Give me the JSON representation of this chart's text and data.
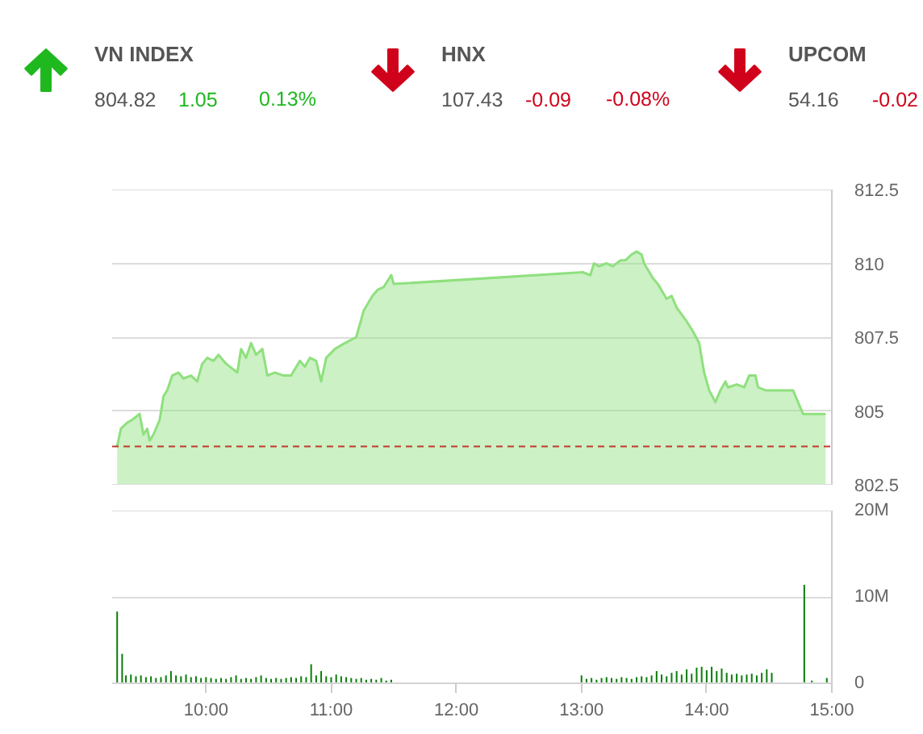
{
  "chart_data": [
    {
      "type": "other",
      "categories": [
        "VN INDEX",
        "HNX",
        "UPCOM"
      ],
      "data_labels": true,
      "series": [
        {
          "values": [
            804.82,
            107.43,
            54.16
          ]
        },
        {
          "colors": [
            "#1fb81f",
            "#d0021b",
            "#d0021b"
          ],
          "values": [
            1.05,
            -0.09,
            -0.02
          ]
        },
        {
          "colors": [
            "#1fb81f",
            "#d0021b",
            "#d0021b"
          ],
          "values": [
            0.13,
            -0.08,
            null
          ],
          "value_labels": [
            "0.13%",
            "-0.08%",
            null
          ]
        }
      ]
    },
    {
      "type": "area",
      "color": "#8fe07e",
      "xlim": [
        9.25,
        15
      ],
      "ylim": [
        802.5,
        812.5
      ],
      "yticks": [
        802.5,
        805,
        807.5,
        810,
        812.5
      ],
      "tick_labels": "y",
      "grid": "y",
      "x": [
        9.29,
        9.32,
        9.37,
        9.41,
        9.47,
        9.5,
        9.53,
        9.55,
        9.58,
        9.63,
        9.66,
        9.69,
        9.73,
        9.78,
        9.82,
        9.88,
        9.93,
        9.97,
        10.01,
        10.06,
        10.1,
        10.16,
        10.25,
        10.28,
        10.32,
        10.36,
        10.4,
        10.45,
        10.49,
        10.55,
        10.62,
        10.68,
        10.75,
        10.79,
        10.83,
        10.88,
        10.92,
        10.96,
        11.03,
        11.11,
        11.2,
        11.26,
        11.33,
        11.37,
        11.42,
        11.48,
        11.5,
        13.01,
        13.07,
        13.1,
        13.14,
        13.2,
        13.25,
        13.31,
        13.35,
        13.4,
        13.44,
        13.48,
        13.5,
        13.57,
        13.61,
        13.68,
        13.72,
        13.76,
        13.83,
        13.89,
        13.94,
        13.98,
        14.02,
        14.07,
        14.11,
        14.15,
        14.17,
        14.24,
        14.3,
        14.34,
        14.39,
        14.41,
        14.47,
        14.69,
        14.77,
        14.95
      ],
      "values": [
        803.8,
        804.4,
        804.6,
        804.7,
        804.9,
        804.2,
        804.4,
        804,
        804.2,
        804.7,
        805.5,
        805.7,
        806.2,
        806.3,
        806.1,
        806.2,
        806,
        806.6,
        806.8,
        806.7,
        806.9,
        806.6,
        806.3,
        807.1,
        806.8,
        807.3,
        806.9,
        807.1,
        806.2,
        806.3,
        806.2,
        806.2,
        806.7,
        806.5,
        806.8,
        806.7,
        806,
        806.8,
        807.1,
        807.3,
        807.5,
        808.4,
        808.9,
        809.1,
        809.2,
        809.6,
        809.3,
        809.7,
        809.6,
        810,
        809.9,
        810,
        809.9,
        810.1,
        810.1,
        810.3,
        810.4,
        810.3,
        810,
        809.5,
        809.3,
        808.8,
        808.9,
        808.5,
        808.1,
        807.7,
        807.3,
        806.3,
        805.7,
        805.3,
        805.7,
        806,
        805.8,
        805.9,
        805.8,
        806.2,
        806.2,
        805.8,
        805.7,
        805.7,
        804.9,
        804.9
      ],
      "ref_lines": [
        {
          "axis": "y",
          "value": 803.8,
          "color": "#c0392b",
          "line_style": "dashed"
        }
      ]
    },
    {
      "type": "bar",
      "color": "#0b7d0b",
      "xlim": [
        9.25,
        15
      ],
      "ylim": [
        0,
        20
      ],
      "xticks": [
        {
          "value": 10,
          "label": "10:00"
        },
        {
          "value": 11,
          "label": "11:00"
        },
        {
          "value": 12,
          "label": "12:00"
        },
        {
          "value": 13,
          "label": "13:00"
        },
        {
          "value": 14,
          "label": "14:00"
        },
        {
          "value": 15,
          "label": "15:00"
        }
      ],
      "yticks": [
        0,
        {
          "value": 10,
          "label": "10M"
        },
        {
          "value": 20,
          "label": "20M"
        }
      ],
      "grid": "y",
      "x": [
        9.29,
        9.33,
        9.36,
        9.4,
        9.44,
        9.48,
        9.52,
        9.56,
        9.6,
        9.64,
        9.68,
        9.72,
        9.76,
        9.8,
        9.84,
        9.88,
        9.92,
        9.96,
        10,
        10.04,
        10.08,
        10.12,
        10.16,
        10.2,
        10.24,
        10.28,
        10.32,
        10.36,
        10.4,
        10.44,
        10.48,
        10.52,
        10.56,
        10.6,
        10.64,
        10.68,
        10.72,
        10.76,
        10.8,
        10.84,
        10.88,
        10.92,
        10.96,
        11,
        11.04,
        11.08,
        11.12,
        11.16,
        11.2,
        11.24,
        11.28,
        11.32,
        11.36,
        11.4,
        11.44,
        11.48,
        13,
        13.04,
        13.08,
        13.12,
        13.16,
        13.2,
        13.24,
        13.28,
        13.32,
        13.36,
        13.4,
        13.44,
        13.48,
        13.52,
        13.56,
        13.6,
        13.64,
        13.68,
        13.72,
        13.76,
        13.8,
        13.84,
        13.88,
        13.92,
        13.96,
        14,
        14.04,
        14.08,
        14.12,
        14.16,
        14.2,
        14.24,
        14.28,
        14.32,
        14.36,
        14.4,
        14.44,
        14.48,
        14.52,
        14.78,
        14.84,
        14.96
      ],
      "values": [
        8.3,
        3.4,
        0.9,
        1.0,
        0.8,
        0.9,
        0.7,
        0.8,
        0.6,
        0.7,
        0.9,
        1.4,
        0.9,
        0.8,
        1.0,
        0.7,
        0.8,
        0.6,
        0.7,
        0.6,
        0.5,
        0.6,
        0.5,
        0.7,
        0.9,
        0.5,
        0.6,
        0.5,
        0.7,
        0.9,
        0.6,
        0.5,
        0.6,
        0.5,
        0.6,
        0.7,
        0.6,
        0.8,
        0.7,
        2.2,
        0.9,
        1.4,
        0.8,
        0.7,
        1.0,
        0.8,
        0.7,
        0.6,
        0.5,
        0.6,
        0.4,
        0.5,
        0.4,
        0.6,
        0.3,
        0.4,
        0.9,
        0.5,
        0.6,
        0.4,
        0.6,
        0.7,
        0.6,
        0.5,
        0.7,
        0.6,
        0.5,
        0.7,
        0.8,
        0.7,
        0.9,
        1.4,
        1.0,
        0.8,
        1.2,
        1.4,
        1.0,
        1.6,
        1.1,
        1.8,
        1.9,
        1.5,
        1.9,
        1.4,
        1.7,
        1.2,
        1.0,
        1.1,
        0.9,
        1.0,
        1.1,
        0.9,
        1.2,
        1.6,
        1.2,
        11.4,
        0.3,
        0.6
      ]
    }
  ]
}
